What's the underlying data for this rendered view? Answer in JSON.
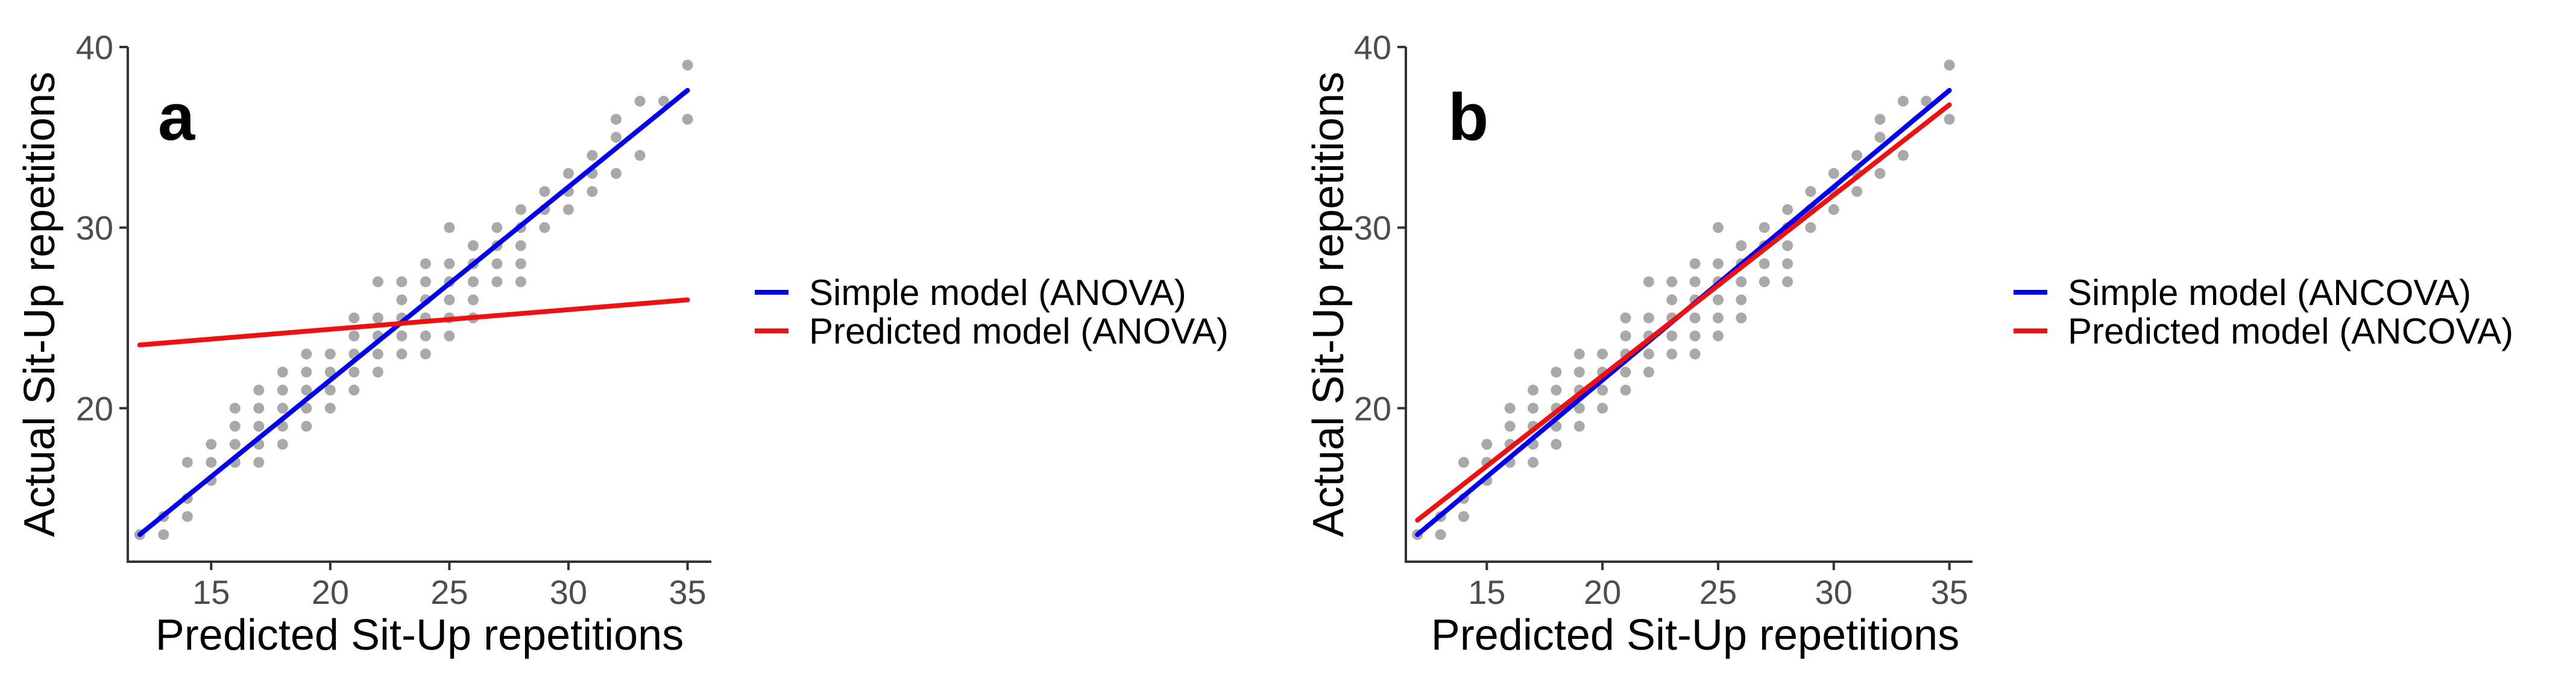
{
  "colors": {
    "points": "#a9a9a9",
    "simple": "#0000ee",
    "predicted": "#ee1111",
    "axis": "#333333",
    "tick_text": "#4d4d4d"
  },
  "chart_data": [
    {
      "type": "scatter",
      "panel_label": "a",
      "xlabel": "Predicted Sit-Up repetitions",
      "ylabel": "Actual Sit-Up repetitions",
      "xlim": [
        11.5,
        36
      ],
      "ylim": [
        11.5,
        40
      ],
      "xticks": [
        15,
        20,
        25,
        30,
        35
      ],
      "yticks": [
        20,
        30,
        40
      ],
      "grid": false,
      "legend_position": "right",
      "points": [
        [
          12,
          13
        ],
        [
          13,
          13
        ],
        [
          13,
          14
        ],
        [
          14,
          14
        ],
        [
          14,
          15
        ],
        [
          14,
          17
        ],
        [
          15,
          16
        ],
        [
          15,
          17
        ],
        [
          15,
          18
        ],
        [
          16,
          17
        ],
        [
          16,
          18
        ],
        [
          16,
          19
        ],
        [
          16,
          20
        ],
        [
          17,
          17
        ],
        [
          17,
          18
        ],
        [
          17,
          19
        ],
        [
          17,
          20
        ],
        [
          17,
          21
        ],
        [
          18,
          18
        ],
        [
          18,
          19
        ],
        [
          18,
          20
        ],
        [
          18,
          21
        ],
        [
          18,
          22
        ],
        [
          19,
          19
        ],
        [
          19,
          20
        ],
        [
          19,
          21
        ],
        [
          19,
          22
        ],
        [
          19,
          23
        ],
        [
          20,
          20
        ],
        [
          20,
          21
        ],
        [
          20,
          22
        ],
        [
          20,
          23
        ],
        [
          21,
          21
        ],
        [
          21,
          22
        ],
        [
          21,
          23
        ],
        [
          21,
          24
        ],
        [
          21,
          25
        ],
        [
          22,
          22
        ],
        [
          22,
          23
        ],
        [
          22,
          24
        ],
        [
          22,
          25
        ],
        [
          22,
          27
        ],
        [
          23,
          23
        ],
        [
          23,
          24
        ],
        [
          23,
          25
        ],
        [
          23,
          26
        ],
        [
          23,
          27
        ],
        [
          24,
          23
        ],
        [
          24,
          24
        ],
        [
          24,
          25
        ],
        [
          24,
          26
        ],
        [
          24,
          27
        ],
        [
          24,
          28
        ],
        [
          25,
          24
        ],
        [
          25,
          25
        ],
        [
          25,
          26
        ],
        [
          25,
          27
        ],
        [
          25,
          28
        ],
        [
          25,
          30
        ],
        [
          26,
          25
        ],
        [
          26,
          26
        ],
        [
          26,
          27
        ],
        [
          26,
          28
        ],
        [
          26,
          29
        ],
        [
          27,
          27
        ],
        [
          27,
          28
        ],
        [
          27,
          29
        ],
        [
          27,
          30
        ],
        [
          28,
          27
        ],
        [
          28,
          28
        ],
        [
          28,
          29
        ],
        [
          28,
          30
        ],
        [
          28,
          31
        ],
        [
          29,
          30
        ],
        [
          29,
          31
        ],
        [
          29,
          32
        ],
        [
          30,
          31
        ],
        [
          30,
          32
        ],
        [
          30,
          33
        ],
        [
          31,
          32
        ],
        [
          31,
          33
        ],
        [
          31,
          34
        ],
        [
          32,
          33
        ],
        [
          32,
          35
        ],
        [
          32,
          36
        ],
        [
          33,
          34
        ],
        [
          33,
          37
        ],
        [
          34,
          37
        ],
        [
          35,
          36
        ],
        [
          35,
          39
        ]
      ],
      "series": [
        {
          "name": "Simple model (ANOVA)",
          "color": "#0000ee",
          "x": [
            12,
            35
          ],
          "y": [
            13.0,
            37.6
          ]
        },
        {
          "name": "Predicted model (ANOVA)",
          "color": "#ee1111",
          "x": [
            12,
            35
          ],
          "y": [
            23.5,
            26.0
          ]
        }
      ]
    },
    {
      "type": "scatter",
      "panel_label": "b",
      "xlabel": "Predicted Sit-Up repetitions",
      "ylabel": "Actual Sit-Up repetitions",
      "xlim": [
        11.5,
        36
      ],
      "ylim": [
        11.5,
        40
      ],
      "xticks": [
        15,
        20,
        25,
        30,
        35
      ],
      "yticks": [
        20,
        30,
        40
      ],
      "grid": false,
      "legend_position": "right",
      "points": [
        [
          12,
          13
        ],
        [
          13,
          13
        ],
        [
          13,
          14
        ],
        [
          14,
          14
        ],
        [
          14,
          15
        ],
        [
          14,
          17
        ],
        [
          15,
          16
        ],
        [
          15,
          17
        ],
        [
          15,
          18
        ],
        [
          16,
          17
        ],
        [
          16,
          18
        ],
        [
          16,
          19
        ],
        [
          16,
          20
        ],
        [
          17,
          17
        ],
        [
          17,
          18
        ],
        [
          17,
          19
        ],
        [
          17,
          20
        ],
        [
          17,
          21
        ],
        [
          18,
          18
        ],
        [
          18,
          19
        ],
        [
          18,
          20
        ],
        [
          18,
          21
        ],
        [
          18,
          22
        ],
        [
          19,
          19
        ],
        [
          19,
          20
        ],
        [
          19,
          21
        ],
        [
          19,
          22
        ],
        [
          19,
          23
        ],
        [
          20,
          20
        ],
        [
          20,
          21
        ],
        [
          20,
          22
        ],
        [
          20,
          23
        ],
        [
          21,
          21
        ],
        [
          21,
          22
        ],
        [
          21,
          23
        ],
        [
          21,
          24
        ],
        [
          21,
          25
        ],
        [
          22,
          22
        ],
        [
          22,
          23
        ],
        [
          22,
          24
        ],
        [
          22,
          25
        ],
        [
          22,
          27
        ],
        [
          23,
          23
        ],
        [
          23,
          24
        ],
        [
          23,
          25
        ],
        [
          23,
          26
        ],
        [
          23,
          27
        ],
        [
          24,
          23
        ],
        [
          24,
          24
        ],
        [
          24,
          25
        ],
        [
          24,
          26
        ],
        [
          24,
          27
        ],
        [
          24,
          28
        ],
        [
          25,
          24
        ],
        [
          25,
          25
        ],
        [
          25,
          26
        ],
        [
          25,
          27
        ],
        [
          25,
          28
        ],
        [
          25,
          30
        ],
        [
          26,
          25
        ],
        [
          26,
          26
        ],
        [
          26,
          27
        ],
        [
          26,
          28
        ],
        [
          26,
          29
        ],
        [
          27,
          27
        ],
        [
          27,
          28
        ],
        [
          27,
          29
        ],
        [
          27,
          30
        ],
        [
          28,
          27
        ],
        [
          28,
          28
        ],
        [
          28,
          29
        ],
        [
          28,
          30
        ],
        [
          28,
          31
        ],
        [
          29,
          30
        ],
        [
          29,
          31
        ],
        [
          29,
          32
        ],
        [
          30,
          31
        ],
        [
          30,
          32
        ],
        [
          30,
          33
        ],
        [
          31,
          32
        ],
        [
          31,
          33
        ],
        [
          31,
          34
        ],
        [
          32,
          33
        ],
        [
          32,
          35
        ],
        [
          32,
          36
        ],
        [
          33,
          34
        ],
        [
          33,
          37
        ],
        [
          34,
          37
        ],
        [
          35,
          36
        ],
        [
          35,
          39
        ]
      ],
      "series": [
        {
          "name": "Simple model (ANCOVA)",
          "color": "#0000ee",
          "x": [
            12,
            35
          ],
          "y": [
            13.0,
            37.6
          ]
        },
        {
          "name": "Predicted model (ANCOVA)",
          "color": "#ee1111",
          "x": [
            12,
            35
          ],
          "y": [
            13.8,
            36.8
          ]
        }
      ]
    }
  ]
}
